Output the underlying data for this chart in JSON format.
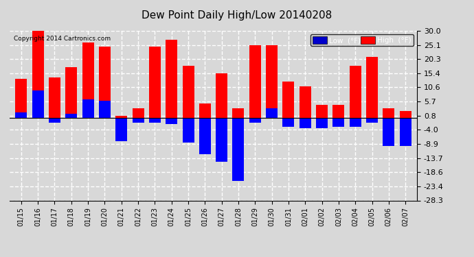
{
  "title": "Dew Point Daily High/Low 20140208",
  "copyright": "Copyright 2014 Cartronics.com",
  "dates": [
    "01/15",
    "01/16",
    "01/17",
    "01/18",
    "01/19",
    "01/20",
    "01/21",
    "01/22",
    "01/23",
    "01/24",
    "01/25",
    "01/26",
    "01/27",
    "01/28",
    "01/29",
    "01/30",
    "01/31",
    "02/01",
    "02/02",
    "02/03",
    "02/04",
    "02/05",
    "02/06",
    "02/07"
  ],
  "high": [
    13.5,
    30.0,
    14.0,
    17.5,
    26.0,
    24.5,
    0.8,
    3.5,
    24.5,
    27.0,
    18.0,
    5.0,
    15.5,
    3.5,
    25.0,
    25.0,
    12.5,
    11.0,
    4.5,
    4.5,
    18.0,
    21.0,
    3.5,
    2.5
  ],
  "low": [
    2.0,
    9.5,
    -1.5,
    1.5,
    6.5,
    6.0,
    -8.0,
    -1.5,
    -1.5,
    -2.0,
    -8.5,
    -12.5,
    -15.0,
    -21.5,
    -1.5,
    3.5,
    -3.0,
    -3.5,
    -3.5,
    -3.0,
    -3.0,
    -1.5,
    -9.5,
    -9.5
  ],
  "high_color": "#ff0000",
  "low_color": "#0000ff",
  "bar_width": 0.7,
  "ylim": [
    -28.3,
    30.0
  ],
  "yticks": [
    30.0,
    25.1,
    20.3,
    15.4,
    10.6,
    5.7,
    0.8,
    -4.0,
    -8.9,
    -13.7,
    -18.6,
    -23.4,
    -28.3
  ],
  "bg_color": "#d8d8d8",
  "grid_color": "#ffffff",
  "legend_low_bg": "#0000cc",
  "legend_high_bg": "#ff0000"
}
